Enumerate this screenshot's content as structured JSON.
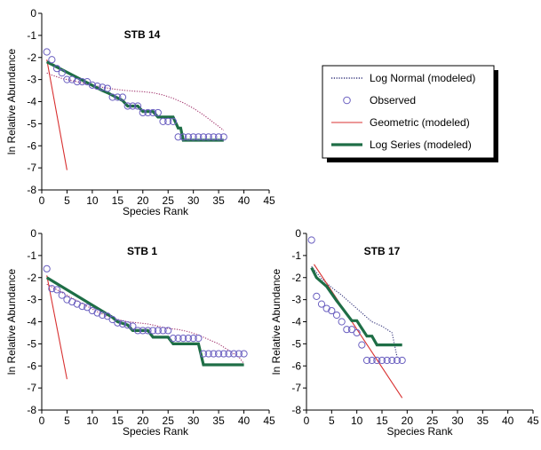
{
  "legend": {
    "placement": "right-of-top-chart",
    "entries": [
      {
        "label": "Log Normal (modeled)",
        "style": "dotted",
        "color": "#33337a"
      },
      {
        "label": "Observed",
        "style": "circle",
        "color": "#6a5fc0"
      },
      {
        "label": "Geometric (modeled)",
        "style": "solid-thin",
        "color": "#d83030"
      },
      {
        "label": "Log Series (modeled)",
        "style": "solid-thick",
        "color": "#1e6e46"
      }
    ]
  },
  "chart_data": [
    {
      "type": "line",
      "title": "STB 14",
      "xlabel": "Species Rank",
      "ylabel": "ln Relative Abundance",
      "xlim": [
        0,
        45
      ],
      "ylim": [
        -8,
        0
      ],
      "x_ticks": [
        0,
        5,
        10,
        15,
        20,
        25,
        30,
        35,
        40,
        45
      ],
      "y_ticks": [
        0,
        -1,
        -2,
        -3,
        -4,
        -5,
        -6,
        -7,
        -8
      ],
      "grid": false,
      "series": [
        {
          "name": "Observed",
          "kind": "scatter",
          "color": "#6a5fc0",
          "x": [
            1,
            2,
            3,
            4,
            5,
            6,
            7,
            8,
            9,
            10,
            11,
            12,
            13,
            14,
            15,
            16,
            17,
            18,
            19,
            20,
            21,
            22,
            23,
            24,
            25,
            26,
            27,
            28,
            29,
            30,
            31,
            32,
            33,
            34,
            35,
            36
          ],
          "y": [
            -1.75,
            -2.1,
            -2.5,
            -2.7,
            -3.0,
            -3.0,
            -3.1,
            -3.1,
            -3.1,
            -3.25,
            -3.3,
            -3.35,
            -3.4,
            -3.8,
            -3.8,
            -3.8,
            -4.2,
            -4.2,
            -4.2,
            -4.5,
            -4.5,
            -4.5,
            -4.5,
            -4.9,
            -4.9,
            -4.9,
            -5.6,
            -5.6,
            -5.6,
            -5.6,
            -5.6,
            -5.6,
            -5.6,
            -5.6,
            -5.6,
            -5.6
          ]
        },
        {
          "name": "Log Normal (modeled)",
          "kind": "dotted",
          "color": "#a0306a",
          "x": [
            1,
            2,
            4,
            6,
            8,
            10,
            12,
            14,
            16,
            18,
            20,
            22,
            24,
            26,
            28,
            30,
            32,
            34,
            36
          ],
          "y": [
            -2.7,
            -2.8,
            -2.95,
            -3.05,
            -3.15,
            -3.25,
            -3.35,
            -3.42,
            -3.48,
            -3.52,
            -3.55,
            -3.6,
            -3.7,
            -3.85,
            -4.05,
            -4.3,
            -4.6,
            -4.95,
            -5.3
          ]
        },
        {
          "name": "Geometric (modeled)",
          "kind": "solid-thin",
          "color": "#d83030",
          "x": [
            1,
            5
          ],
          "y": [
            -2.1,
            -7.1
          ]
        },
        {
          "name": "Log Series (modeled)",
          "kind": "step",
          "color": "#1e6e46",
          "x": [
            1,
            12,
            13,
            16,
            17,
            19,
            20,
            22,
            23,
            26,
            27,
            27.5,
            28,
            36
          ],
          "y": [
            -2.2,
            -3.5,
            -3.6,
            -3.95,
            -4.2,
            -4.2,
            -4.45,
            -4.45,
            -4.7,
            -4.7,
            -5.2,
            -5.2,
            -5.75,
            -5.75
          ]
        }
      ]
    },
    {
      "type": "line",
      "title": "STB 1",
      "xlabel": "Species Rank",
      "ylabel": "ln Relative Abundance",
      "xlim": [
        0,
        45
      ],
      "ylim": [
        -8,
        0
      ],
      "x_ticks": [
        0,
        5,
        10,
        15,
        20,
        25,
        30,
        35,
        40,
        45
      ],
      "y_ticks": [
        0,
        -1,
        -2,
        -3,
        -4,
        -5,
        -6,
        -7,
        -8
      ],
      "grid": false,
      "series": [
        {
          "name": "Observed",
          "kind": "scatter",
          "color": "#6a5fc0",
          "x": [
            1,
            2,
            3,
            4,
            5,
            6,
            7,
            8,
            9,
            10,
            11,
            12,
            13,
            14,
            15,
            16,
            17,
            18,
            19,
            20,
            21,
            22,
            23,
            24,
            25,
            26,
            27,
            28,
            29,
            30,
            31,
            32,
            33,
            34,
            35,
            36,
            37,
            38,
            39,
            40
          ],
          "y": [
            -1.6,
            -2.5,
            -2.55,
            -2.8,
            -3.0,
            -3.1,
            -3.2,
            -3.3,
            -3.35,
            -3.5,
            -3.6,
            -3.7,
            -3.75,
            -3.9,
            -4.05,
            -4.1,
            -4.15,
            -4.2,
            -4.4,
            -4.4,
            -4.4,
            -4.4,
            -4.4,
            -4.4,
            -4.4,
            -4.75,
            -4.75,
            -4.75,
            -4.75,
            -4.75,
            -4.75,
            -5.45,
            -5.45,
            -5.45,
            -5.45,
            -5.45,
            -5.45,
            -5.45,
            -5.45,
            -5.45
          ]
        },
        {
          "name": "Log Normal (modeled)",
          "kind": "dotted",
          "color": "#a0306a",
          "x": [
            1,
            3,
            5,
            7,
            9,
            11,
            13,
            15,
            17,
            19,
            21,
            23,
            25,
            27,
            29,
            31,
            33,
            35,
            37,
            39,
            40
          ],
          "y": [
            -2.3,
            -2.55,
            -2.8,
            -3.05,
            -3.3,
            -3.55,
            -3.75,
            -3.9,
            -4.0,
            -4.05,
            -4.1,
            -4.2,
            -4.3,
            -4.35,
            -4.45,
            -4.6,
            -4.8,
            -5.0,
            -5.3,
            -5.6,
            -5.9
          ]
        },
        {
          "name": "Geometric (modeled)",
          "kind": "solid-thin",
          "color": "#d83030",
          "x": [
            1,
            5
          ],
          "y": [
            -1.9,
            -6.6
          ]
        },
        {
          "name": "Log Series (modeled)",
          "kind": "step",
          "color": "#1e6e46",
          "x": [
            1,
            14,
            15,
            17,
            18,
            21,
            22,
            25,
            26,
            31,
            32,
            40
          ],
          "y": [
            -2.0,
            -3.8,
            -4.0,
            -4.15,
            -4.4,
            -4.4,
            -4.7,
            -4.7,
            -5.0,
            -5.0,
            -5.95,
            -5.95
          ]
        }
      ]
    },
    {
      "type": "line",
      "title": "STB 17",
      "xlabel": "Species Rank",
      "ylabel": "ln Relative Abundance",
      "xlim": [
        0,
        45
      ],
      "ylim": [
        -8,
        0
      ],
      "x_ticks": [
        0,
        5,
        10,
        15,
        20,
        25,
        30,
        35,
        40,
        45
      ],
      "y_ticks": [
        0,
        -1,
        -2,
        -3,
        -4,
        -5,
        -6,
        -7,
        -8
      ],
      "grid": false,
      "series": [
        {
          "name": "Observed",
          "kind": "scatter",
          "color": "#6a5fc0",
          "x": [
            1,
            2,
            3,
            4,
            5,
            6,
            7,
            8,
            9,
            10,
            11,
            12,
            13,
            14,
            15,
            16,
            17,
            18,
            19
          ],
          "y": [
            -0.3,
            -2.85,
            -3.2,
            -3.4,
            -3.5,
            -3.7,
            -4.0,
            -4.35,
            -4.35,
            -4.5,
            -5.05,
            -5.75,
            -5.75,
            -5.75,
            -5.75,
            -5.75,
            -5.75,
            -5.75,
            -5.75
          ]
        },
        {
          "name": "Log Normal (modeled)",
          "kind": "dotted",
          "color": "#33337a",
          "x": [
            1,
            3,
            5,
            7,
            9,
            11,
            13,
            15,
            17,
            18
          ],
          "y": [
            -1.5,
            -2.05,
            -2.45,
            -2.8,
            -3.2,
            -3.6,
            -4.0,
            -4.2,
            -4.5,
            -5.6
          ]
        },
        {
          "name": "Geometric (modeled)",
          "kind": "solid-thin",
          "color": "#d83030",
          "x": [
            1.5,
            19
          ],
          "y": [
            -1.4,
            -7.45
          ]
        },
        {
          "name": "Log Series (modeled)",
          "kind": "step",
          "color": "#1e6e46",
          "x": [
            1,
            2,
            4,
            6,
            7,
            8,
            9,
            10,
            11,
            12,
            13,
            14,
            19
          ],
          "y": [
            -1.55,
            -2.0,
            -2.4,
            -3.05,
            -3.35,
            -3.65,
            -3.95,
            -3.95,
            -4.3,
            -4.65,
            -4.65,
            -5.05,
            -5.05
          ]
        }
      ]
    }
  ]
}
